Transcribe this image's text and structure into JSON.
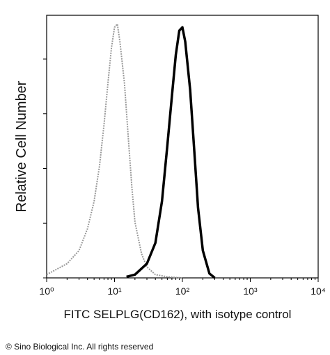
{
  "chart_data": {
    "type": "line",
    "xlabel": "FITC SELPLG(CD162), with isotype control",
    "ylabel": "Relative Cell Number",
    "xscale": "log",
    "xlim": [
      1,
      10000
    ],
    "xticks": [
      {
        "value": 1,
        "label": "10⁰"
      },
      {
        "value": 10,
        "label": "10¹"
      },
      {
        "value": 100,
        "label": "10²"
      },
      {
        "value": 1000,
        "label": "10³"
      },
      {
        "value": 10000,
        "label": "10⁴"
      }
    ],
    "ylim": [
      0,
      240
    ],
    "yticks": [
      0,
      50,
      100,
      150,
      200
    ],
    "series": [
      {
        "color": "#999999",
        "dashed": true,
        "x": [
          1,
          2,
          3,
          4,
          5,
          6,
          7,
          8,
          9,
          10,
          11,
          12,
          14,
          16,
          18,
          20,
          25,
          30,
          40,
          60,
          100
        ],
        "values": [
          3,
          13,
          25,
          45,
          70,
          102,
          140,
          178,
          210,
          229,
          232,
          216,
          178,
          127,
          83,
          51,
          22,
          10,
          3,
          1,
          0
        ]
      },
      {
        "color": "#000000",
        "dashed": false,
        "x": [
          15,
          20,
          30,
          40,
          50,
          60,
          70,
          80,
          90,
          100,
          110,
          130,
          150,
          170,
          200,
          250,
          300
        ],
        "values": [
          1,
          3,
          13,
          32,
          70,
          121,
          166,
          204,
          226,
          229,
          216,
          172,
          115,
          64,
          25,
          4,
          0
        ]
      }
    ]
  },
  "footer": "© Sino Biological Inc. All rights reserved"
}
